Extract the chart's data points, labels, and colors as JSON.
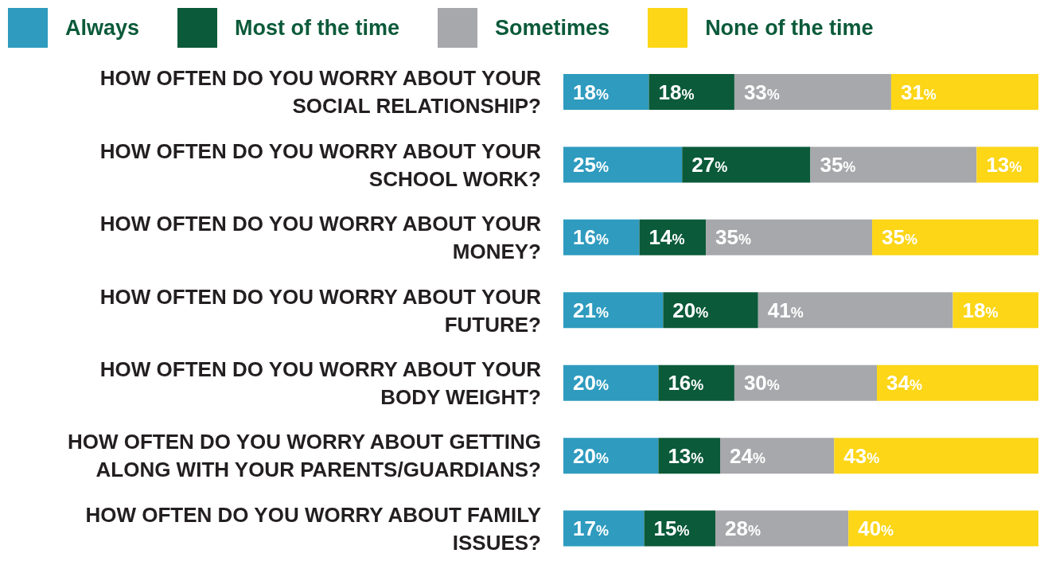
{
  "chart_data": {
    "type": "bar",
    "orientation": "horizontal",
    "stacked": true,
    "legend": "top",
    "tick_labels": "y",
    "xlim": [
      0,
      100
    ],
    "categories": [
      "HOW OFTEN DO YOU WORRY ABOUT YOUR SOCIAL RELATIONSHIP?",
      "HOW OFTEN DO YOU WORRY ABOUT YOUR SCHOOL WORK?",
      "HOW OFTEN DO YOU WORRY ABOUT YOUR MONEY?",
      "HOW OFTEN DO YOU WORRY ABOUT YOUR FUTURE?",
      "HOW OFTEN DO YOU WORRY ABOUT YOUR BODY WEIGHT?",
      "HOW OFTEN DO YOU WORRY ABOUT GETTING ALONG WITH YOUR PARENTS/GUARDIANS?",
      "HOW OFTEN DO YOU WORRY ABOUT FAMILY ISSUES?"
    ],
    "series": [
      {
        "name": "Always",
        "color": "#2e9bbf",
        "values": [
          18,
          25,
          16,
          21,
          20,
          20,
          17
        ],
        "value_labels": [
          "18%",
          "25%",
          "16%",
          "21%",
          "20%",
          "20%",
          "17%"
        ]
      },
      {
        "name": "Most of the time",
        "color": "#0b5a3a",
        "values": [
          18,
          27,
          14,
          20,
          16,
          13,
          15
        ],
        "value_labels": [
          "18%",
          "27%",
          "14%",
          "20%",
          "16%",
          "13%",
          "15%"
        ]
      },
      {
        "name": "Sometimes",
        "color": "#a7a8ab",
        "values": [
          33,
          35,
          35,
          41,
          30,
          24,
          28
        ],
        "value_labels": [
          "33%",
          "35%",
          "35%",
          "41%",
          "30%",
          "24%",
          "28%"
        ]
      },
      {
        "name": "None of the time",
        "color": "#fcd617",
        "values": [
          31,
          13,
          35,
          18,
          34,
          43,
          40
        ],
        "value_labels": [
          "31%",
          "13%",
          "35%",
          "18%",
          "34%",
          "43%",
          "40%"
        ]
      }
    ]
  }
}
